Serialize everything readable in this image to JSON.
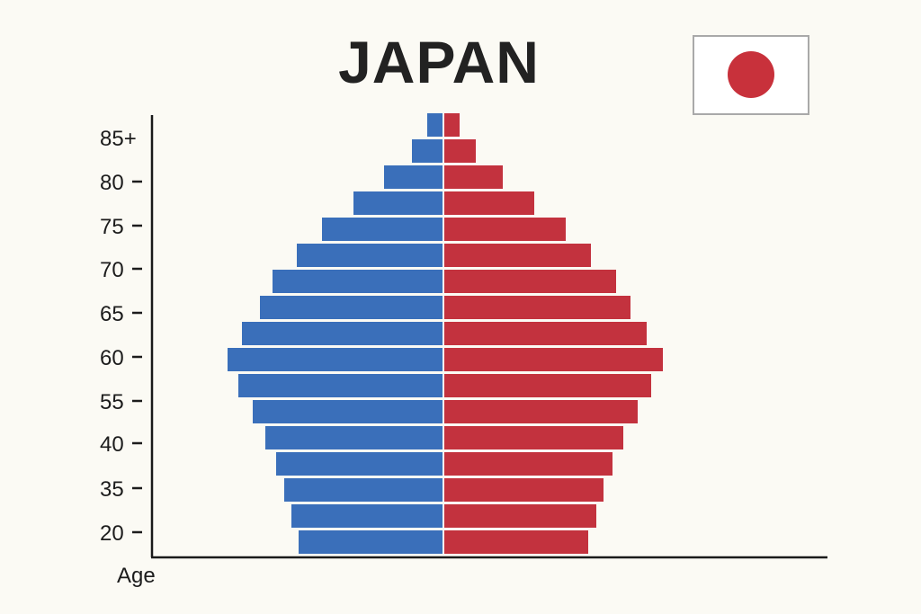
{
  "chart_data": {
    "type": "bar",
    "subtype": "population-pyramid",
    "title": "JAPAN",
    "ylabel": "Age",
    "xlabel": "",
    "tick_labels": [
      "85+",
      "80",
      "75",
      "70",
      "65",
      "60",
      "55",
      "40",
      "35",
      "20"
    ],
    "bar_rows": 17,
    "xlim": [
      -250,
      250
    ],
    "series": [
      {
        "side": "left",
        "color": "#3a6fba",
        "values": [
          160,
          168,
          176,
          185,
          197,
          211,
          227,
          239,
          223,
          203,
          189,
          162,
          134,
          99,
          65,
          34,
          17
        ]
      },
      {
        "side": "right",
        "color": "#c3323e",
        "values": [
          160,
          169,
          177,
          187,
          199,
          215,
          230,
          243,
          225,
          207,
          191,
          163,
          135,
          100,
          65,
          35,
          17
        ]
      }
    ],
    "grid": false,
    "legend": "none"
  },
  "flag": {
    "name": "japan-flag",
    "background": "#ffffff",
    "border": "#a9a9a9",
    "disc_color": "#c8313b"
  },
  "colors": {
    "background": "#fbfaf4",
    "axis": "#1a1a1a"
  }
}
